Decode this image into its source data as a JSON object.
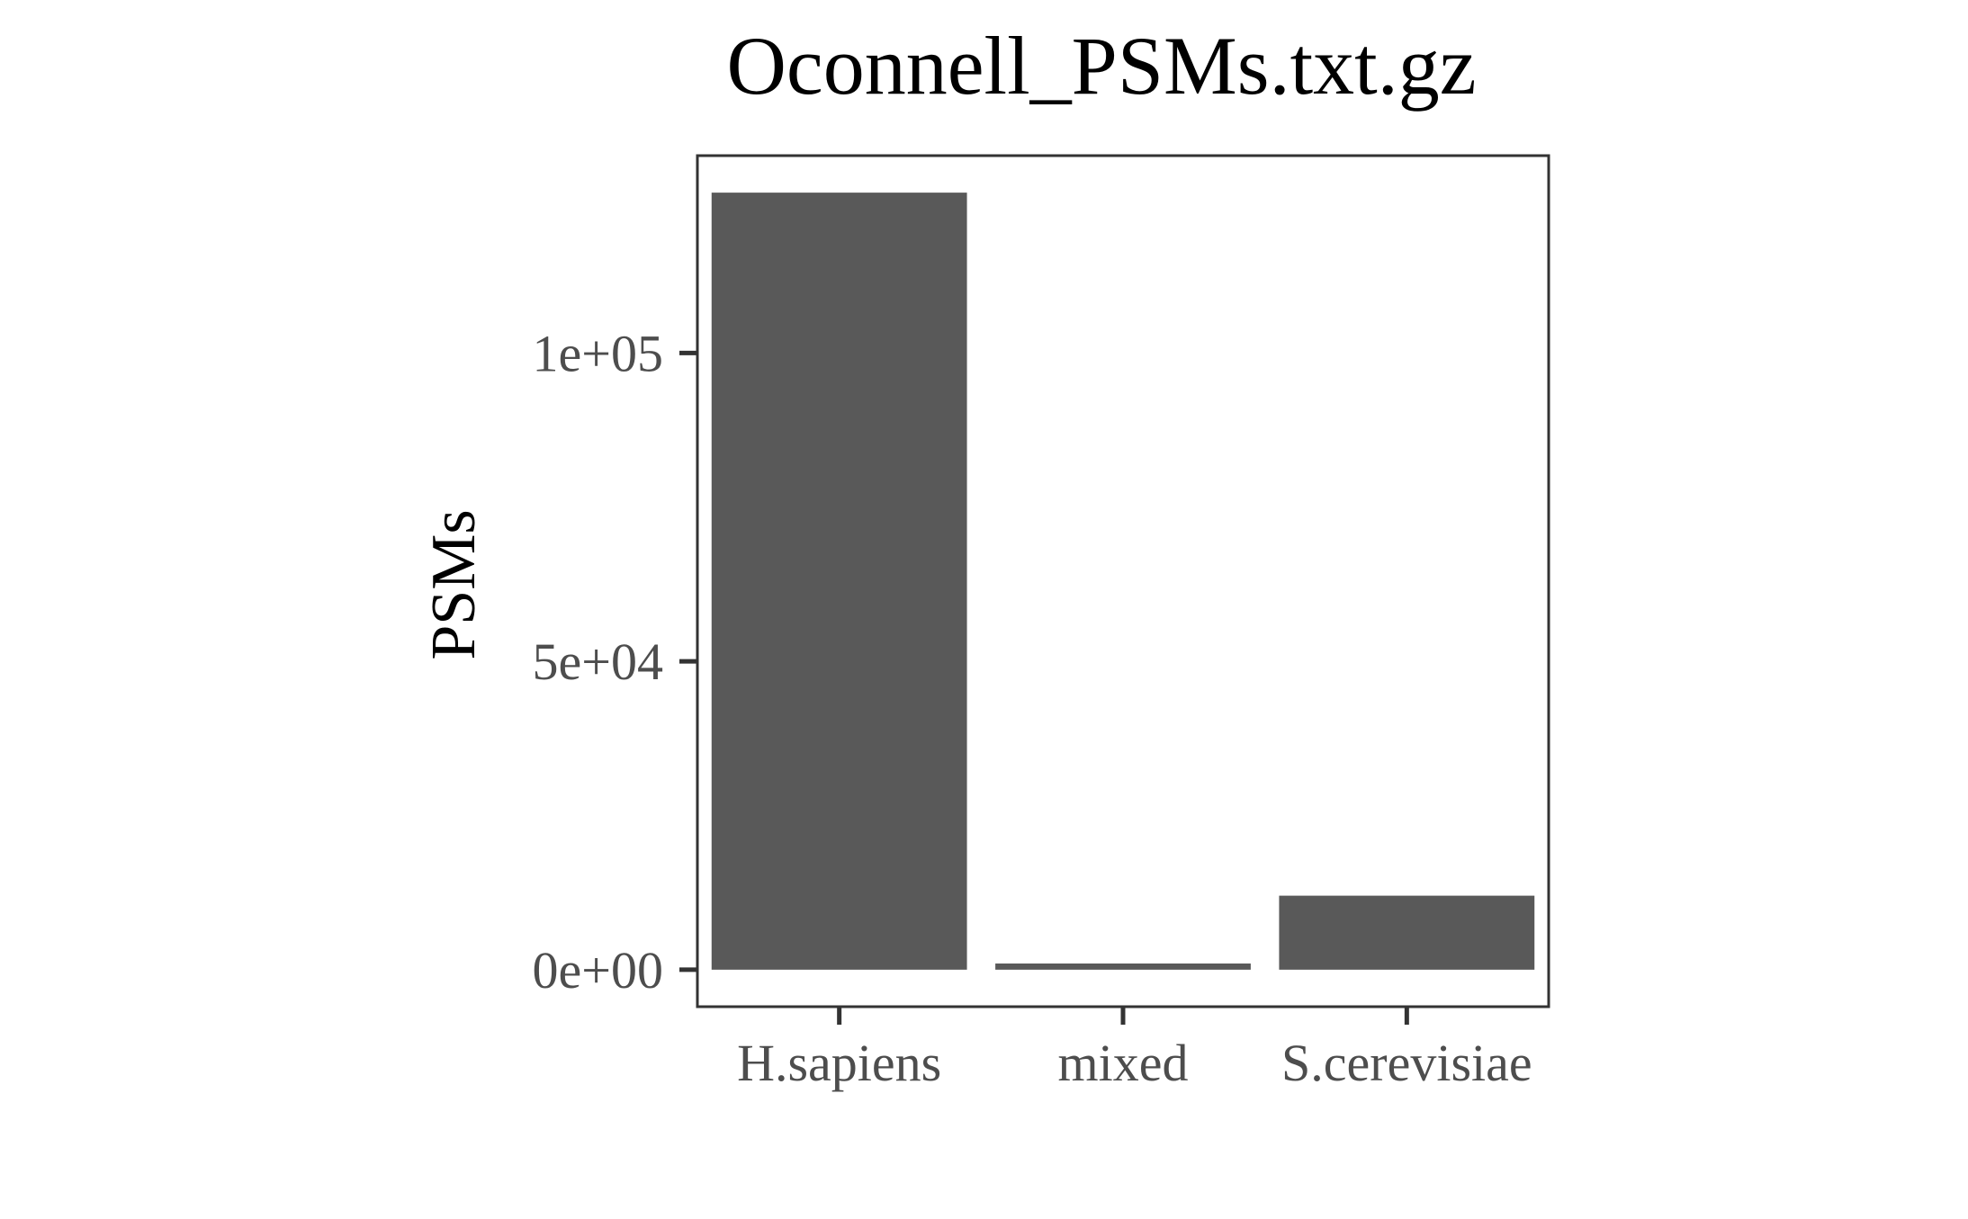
{
  "chart_data": {
    "type": "bar",
    "title": "Oconnell_PSMs.txt.gz",
    "xlabel": "",
    "ylabel": "PSMs",
    "categories": [
      "H.sapiens",
      "mixed",
      "S.cerevisiae"
    ],
    "values": [
      126000,
      1000,
      12000
    ],
    "ylim": [
      -6000,
      132000
    ],
    "yticks": [
      0,
      50000,
      100000
    ],
    "ytick_labels": [
      "0e+00",
      "5e+04",
      "1e+05"
    ],
    "bar_color": "#595959",
    "grid": false,
    "legend": "none"
  }
}
